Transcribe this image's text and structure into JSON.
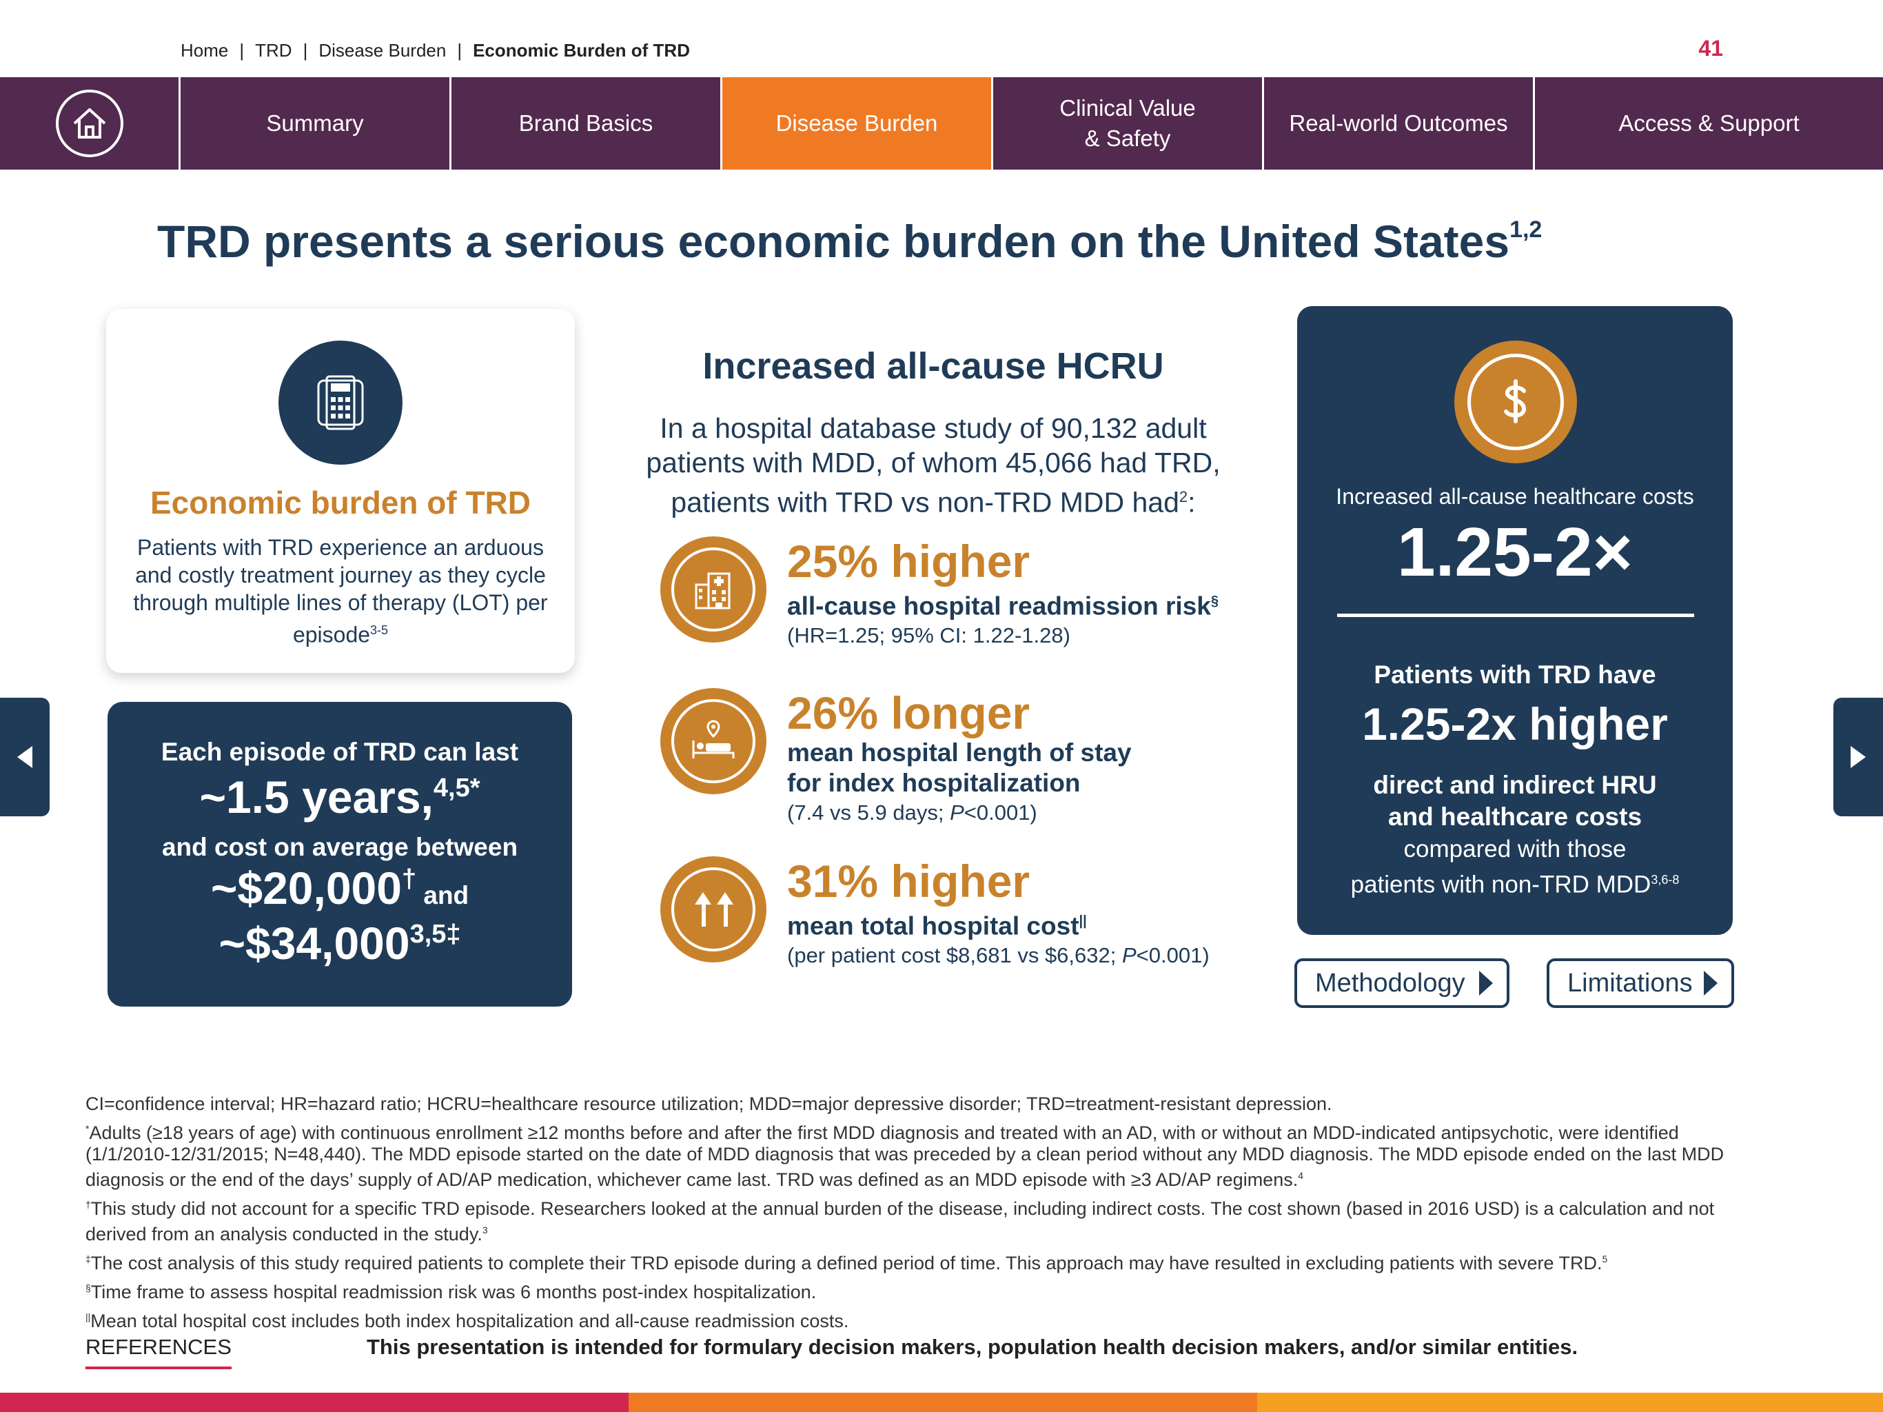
{
  "breadcrumb": {
    "items": [
      "Home",
      "TRD",
      "Disease Burden",
      "Economic Burden of TRD"
    ],
    "separator": "|"
  },
  "page_number": "41",
  "nav": {
    "home_icon": "home-icon",
    "tabs": [
      {
        "label": "Summary",
        "active": false
      },
      {
        "label": "Brand Basics",
        "active": false
      },
      {
        "label": "Disease Burden",
        "active": true
      },
      {
        "label": "Clinical Value\n& Safety",
        "active": false
      },
      {
        "label": "Real-world Outcomes",
        "active": false
      },
      {
        "label": "Access & Support",
        "active": false
      }
    ]
  },
  "title": {
    "text": "TRD presents a serious economic burden on the United States",
    "sup": "1,2"
  },
  "econ_card": {
    "icon": "calculator-icon",
    "heading": "Economic burden of TRD",
    "body": "Patients with TRD experience an arduous and costly treatment journey as they cycle through multiple lines of therapy (LOT) per episode",
    "body_sup": "3-5"
  },
  "episode_card": {
    "line1": "Each episode of TRD can last",
    "big1": "~1.5 years,",
    "big1_sup": "4,5*",
    "line2": "and cost on average between",
    "big2": "~$20,000",
    "big2_sup": "†",
    "big2_and": " and",
    "big3": "~$34,000",
    "big3_sup": "3,5‡"
  },
  "middle": {
    "heading": "Increased all-cause HCRU",
    "intro": "In a hospital database study of 90,132 adult patients with MDD, of whom 45,066 had TRD, patients with TRD vs non-TRD MDD had",
    "intro_sup": "2",
    "intro_end": ":",
    "stats": [
      {
        "icon": "hospital-building-icon",
        "big": "25% higher",
        "desc": "all-cause hospital readmission risk",
        "desc_sup": "§",
        "note": "(HR=1.25; 95% CI: 1.22-1.28)"
      },
      {
        "icon": "hospital-bed-icon",
        "big": "26% longer",
        "desc": "mean hospital length of stay\nfor index hospitalization",
        "desc_sup": "",
        "note_pre": "(7.4 vs 5.9 days; ",
        "note_italic": "P",
        "note_post": "<0.001)"
      },
      {
        "icon": "up-arrows-icon",
        "big": "31% higher",
        "desc": "mean total hospital cost",
        "desc_sup": "||",
        "note_pre": "(per patient cost $8,681 vs $6,632; ",
        "note_italic": "P",
        "note_post": "<0.001)"
      }
    ]
  },
  "cost_card": {
    "icon": "dollar-icon",
    "label": "Increased all-cause healthcare costs",
    "big": "1.25-2×",
    "line1": "Patients with TRD have",
    "big2": "1.25-2x higher",
    "line2": "direct and indirect HRU\nand healthcare costs",
    "line3": "compared with those\npatients with non-TRD MDD",
    "line3_sup": "3,6-8"
  },
  "buttons": {
    "methodology": "Methodology",
    "limitations": "Limitations"
  },
  "footnotes": [
    {
      "sup": "",
      "text": "CI=confidence interval; HR=hazard ratio; HCRU=healthcare resource utilization; MDD=major depressive disorder; TRD=treatment-resistant depression.",
      "end_sup": ""
    },
    {
      "sup": "*",
      "text": "Adults (≥18 years of age) with continuous enrollment ≥12 months before and after the first MDD diagnosis and treated with an AD, with or without an MDD-indicated antipsychotic, were identified (1/1/2010-12/31/2015; N=48,440). The MDD episode started on the date of MDD diagnosis that was preceded by a clean period without any MDD diagnosis. The MDD episode ended on the last MDD diagnosis or the end of the days’ supply of AD/AP medication, whichever came last. TRD was defined as an MDD episode with ≥3 AD/AP regimens.",
      "end_sup": "4"
    },
    {
      "sup": "†",
      "text": "This study did not account for a specific TRD episode. Researchers looked at the annual burden of the disease, including indirect costs. The cost shown (based in 2016 USD) is a calculation and not derived from an analysis conducted in the study.",
      "end_sup": "3"
    },
    {
      "sup": "‡",
      "text": "The cost analysis of this study required patients to complete their TRD episode during a defined period of time. This approach may have resulted in excluding patients with severe TRD.",
      "end_sup": "5"
    },
    {
      "sup": "§",
      "text": "Time frame to assess hospital readmission risk was 6 months post-index hospitalization.",
      "end_sup": ""
    },
    {
      "sup": "||",
      "text": "Mean total hospital cost includes both index hospitalization and all-cause readmission costs.",
      "end_sup": ""
    }
  ],
  "references_label": "REFERENCES",
  "disclaimer": "This presentation is intended for formulary decision makers, population health decision makers, and/or similar entities.",
  "colors": {
    "nav_bg": "#52294f",
    "nav_active": "#f07a24",
    "navy": "#1f3b57",
    "gold": "#c9822c",
    "accent_red": "#d1264f"
  }
}
